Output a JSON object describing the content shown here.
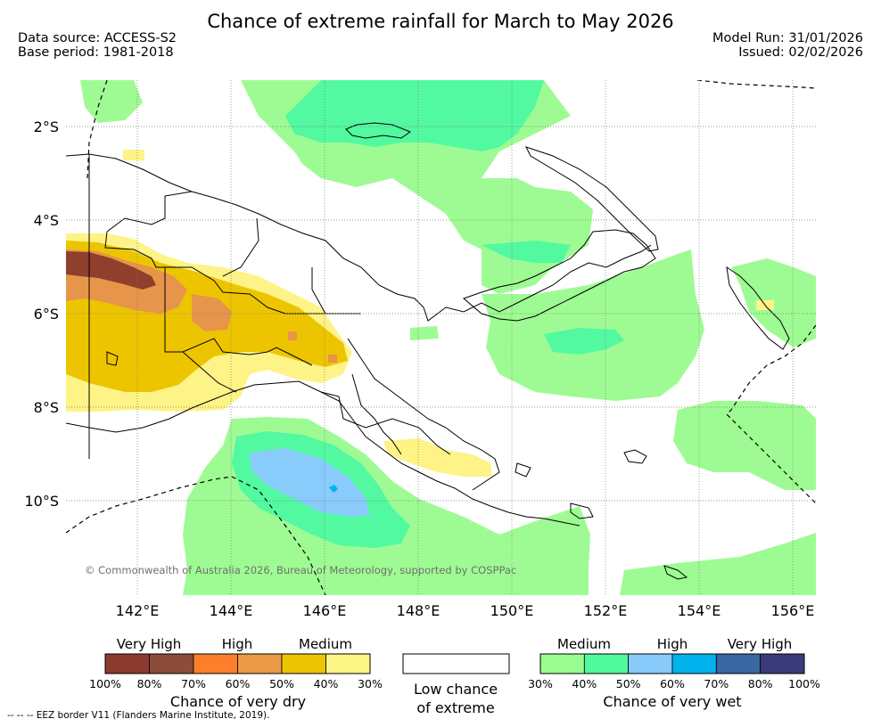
{
  "header": {
    "title": "Chance of extreme rainfall for March to May 2026",
    "data_source": "Data source: ACCESS-S2",
    "base_period": "Base period: 1981-2018",
    "model_run": "Model Run: 31/01/2026",
    "issued": "Issued: 02/02/2026"
  },
  "map": {
    "lat_ticks": [
      "2°S",
      "4°S",
      "6°S",
      "8°S",
      "10°S"
    ],
    "lon_ticks": [
      "142°E",
      "144°E",
      "146°E",
      "148°E",
      "150°E",
      "152°E",
      "154°E",
      "156°E"
    ],
    "copyright": "© Commonwealth of Australia 2026, Bureau of Meteorology, supported by COSPPac",
    "colors": {
      "wet_medium": "#9efb93",
      "wet_medium_high": "#52f9a0",
      "wet_high": "#89cbfb",
      "wet_high_very": "#00b1f0",
      "dry_low": "#fdf386",
      "dry_medium": "#ecc500",
      "dry_high": "#e7954a",
      "dry_very_high": "#8f3f2c"
    }
  },
  "legend": {
    "dry": {
      "levels": [
        "Very High",
        "High",
        "Medium"
      ],
      "pcts": [
        "100%",
        "80%",
        "70%",
        "60%",
        "50%",
        "40%",
        "30%"
      ],
      "colors": [
        "#8c3a2f",
        "#8b4d39",
        "#fd7f2b",
        "#eb9a46",
        "#ebc502",
        "#fdf586"
      ],
      "caption": "Chance of very dry"
    },
    "neutral": {
      "caption_line1": "Low chance",
      "caption_line2": "of extreme"
    },
    "wet": {
      "levels": [
        "Medium",
        "High",
        "Very High"
      ],
      "pcts": [
        "30%",
        "40%",
        "50%",
        "60%",
        "70%",
        "80%",
        "100%"
      ],
      "colors": [
        "#99fb90",
        "#50f99e",
        "#88cbfb",
        "#02b2ec",
        "#3a66a2",
        "#3b3a7a"
      ],
      "caption": "Chance of very wet"
    }
  },
  "footnote": "-- -- -- EEZ border V11 (Flanders Marine Institute, 2019)."
}
